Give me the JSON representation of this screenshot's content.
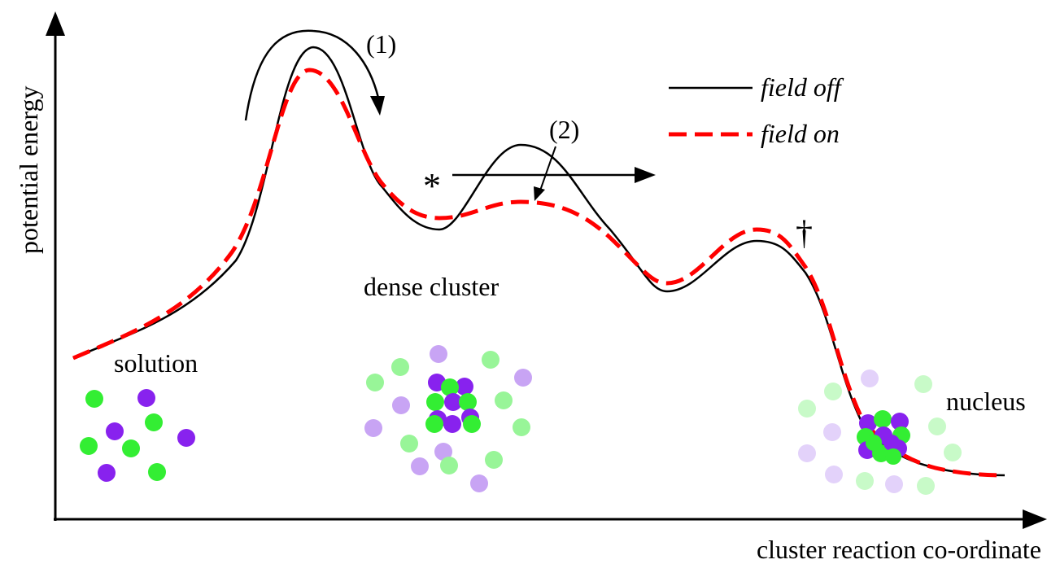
{
  "axes": {
    "y_label": "potential energy",
    "x_label": "cluster reaction co-ordinate"
  },
  "legend": {
    "items": [
      {
        "label": "field off",
        "style": "solid",
        "color": "#000000"
      },
      {
        "label": "field on",
        "style": "dashed",
        "color": "#ff0000"
      }
    ]
  },
  "annotations": {
    "step1": "(1)",
    "step2": "(2)",
    "asterisk": "*",
    "dagger": "†"
  },
  "states": {
    "solution": "solution",
    "dense_cluster": "dense cluster",
    "nucleus": "nucleus"
  },
  "colors": {
    "axis": "#000000",
    "field_off": "#000000",
    "field_on": "#ff0000",
    "green": "#33ee33",
    "purple": "#8822ee"
  },
  "icons": {
    "y_arrow": "arrow-up",
    "x_arrow": "arrow-right"
  }
}
